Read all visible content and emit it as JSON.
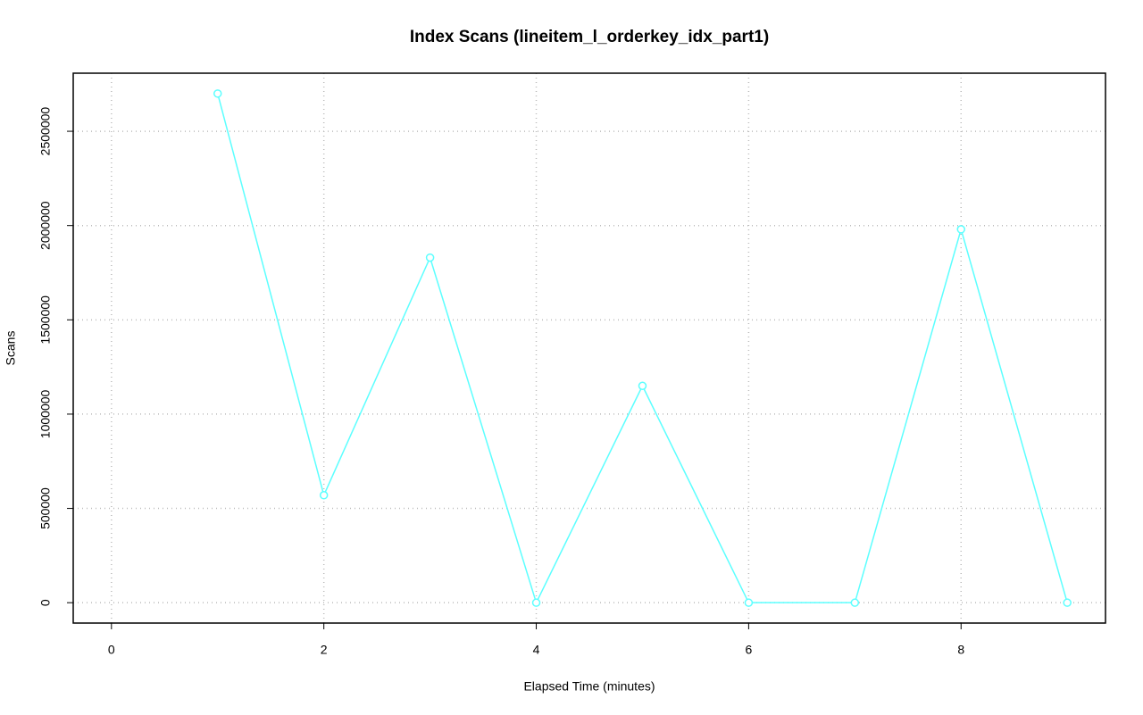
{
  "chart_data": {
    "type": "line",
    "title": "Index Scans (lineitem_l_orderkey_idx_part1)",
    "x_label": "Elapsed Time (minutes)",
    "y_label": "Scans",
    "x": [
      1,
      2,
      3,
      4,
      5,
      6,
      7,
      8,
      9
    ],
    "series": [
      {
        "name": "Scans",
        "color": "#5cffff",
        "values": [
          2700000,
          570000,
          1830000,
          0,
          1150000,
          0,
          0,
          1980000,
          0
        ]
      }
    ],
    "xlim": [
      -0.36,
      9.36
    ],
    "xticks": [
      0,
      2,
      4,
      6,
      8
    ],
    "ylim": [
      -108000,
      2808000
    ],
    "yticks": [
      0,
      500000,
      1000000,
      1500000,
      2000000,
      2500000
    ],
    "grid": true
  }
}
